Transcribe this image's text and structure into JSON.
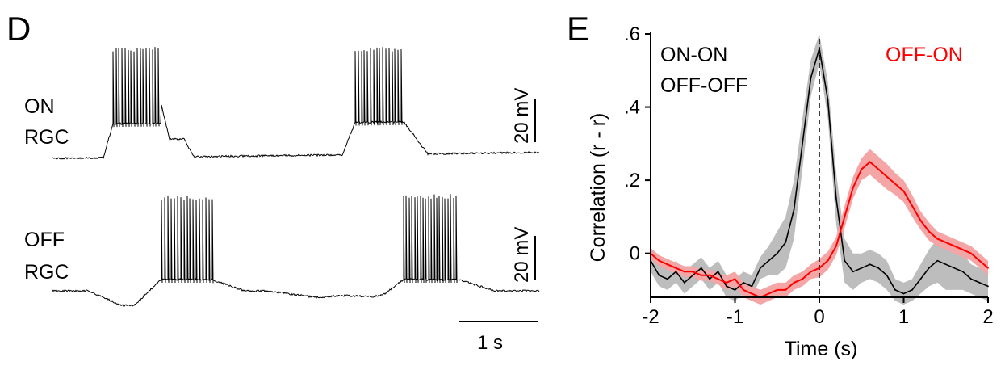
{
  "panels": {
    "d_letter": "D",
    "e_letter": "E"
  },
  "traces_panel": {
    "trace_labels": [
      {
        "line1": "ON",
        "line2": "RGC"
      },
      {
        "line1": "OFF",
        "line2": "RGC"
      }
    ],
    "voltage_scale_label": "20 mV",
    "time_scale_label": "1 s"
  },
  "chart_data": {
    "type": "line",
    "xlabel": "Time (s)",
    "ylabel": "Correlation (r - r)",
    "xlim": [
      -2,
      2
    ],
    "ylim": [
      -0.12,
      0.6
    ],
    "x_ticks": [
      {
        "value": -2,
        "label": "-2"
      },
      {
        "value": -1,
        "label": "-1"
      },
      {
        "value": 0,
        "label": "0"
      },
      {
        "value": 1,
        "label": "1"
      },
      {
        "value": 2,
        "label": "2"
      }
    ],
    "y_ticks": [
      {
        "value": 0,
        "label": "0"
      },
      {
        "value": 0.2,
        "label": ".2"
      },
      {
        "value": 0.4,
        "label": ".4"
      },
      {
        "value": 0.6,
        "label": ".6"
      }
    ],
    "legend": [
      "ON-ON",
      "OFF-OFF",
      "OFF-ON"
    ],
    "zero_line": true,
    "colors": {
      "same_type": "#000000",
      "same_type_band": "#bdbdbd",
      "opposite_type": "#ff0000",
      "opposite_type_band": "#f4a6a6"
    },
    "series": [
      {
        "name": "ON-ON",
        "color": "#000000",
        "x": [
          -2.0,
          -1.9,
          -1.8,
          -1.7,
          -1.6,
          -1.5,
          -1.4,
          -1.3,
          -1.2,
          -1.1,
          -1.0,
          -0.9,
          -0.8,
          -0.7,
          -0.6,
          -0.5,
          -0.4,
          -0.3,
          -0.2,
          -0.1,
          0.0,
          0.1,
          0.2,
          0.3,
          0.4,
          0.5,
          0.6,
          0.7,
          0.8,
          0.9,
          1.0,
          1.1,
          1.2,
          1.3,
          1.4,
          1.5,
          1.6,
          1.7,
          1.8,
          1.9,
          2.0
        ],
        "values": [
          -0.02,
          -0.06,
          -0.07,
          -0.05,
          -0.08,
          -0.06,
          -0.04,
          -0.07,
          -0.05,
          -0.09,
          -0.1,
          -0.08,
          -0.09,
          -0.04,
          -0.02,
          0.0,
          0.03,
          0.12,
          0.3,
          0.48,
          0.56,
          0.42,
          0.15,
          -0.02,
          -0.05,
          -0.04,
          -0.03,
          -0.04,
          -0.06,
          -0.1,
          -0.11,
          -0.1,
          -0.07,
          -0.04,
          -0.02,
          -0.03,
          -0.04,
          -0.05,
          -0.07,
          -0.08,
          -0.09
        ],
        "err": [
          0.03,
          0.03,
          0.03,
          0.03,
          0.03,
          0.03,
          0.03,
          0.03,
          0.03,
          0.03,
          0.03,
          0.03,
          0.03,
          0.03,
          0.04,
          0.06,
          0.07,
          0.08,
          0.07,
          0.05,
          0.04,
          0.05,
          0.07,
          0.06,
          0.05,
          0.04,
          0.04,
          0.04,
          0.04,
          0.03,
          0.03,
          0.03,
          0.04,
          0.05,
          0.06,
          0.07,
          0.06,
          0.05,
          0.04,
          0.04,
          0.04
        ]
      },
      {
        "name": "OFF-ON",
        "color": "#ff0000",
        "x": [
          -2.0,
          -1.9,
          -1.8,
          -1.7,
          -1.6,
          -1.5,
          -1.4,
          -1.3,
          -1.2,
          -1.1,
          -1.0,
          -0.9,
          -0.8,
          -0.7,
          -0.6,
          -0.5,
          -0.4,
          -0.3,
          -0.2,
          -0.1,
          0.0,
          0.1,
          0.2,
          0.3,
          0.4,
          0.5,
          0.6,
          0.7,
          0.8,
          0.9,
          1.0,
          1.1,
          1.2,
          1.3,
          1.4,
          1.5,
          1.6,
          1.7,
          1.8,
          1.9,
          2.0
        ],
        "values": [
          0.0,
          -0.02,
          -0.03,
          -0.04,
          -0.05,
          -0.05,
          -0.06,
          -0.06,
          -0.07,
          -0.08,
          -0.07,
          -0.1,
          -0.11,
          -0.12,
          -0.11,
          -0.1,
          -0.1,
          -0.08,
          -0.07,
          -0.05,
          -0.04,
          -0.02,
          0.02,
          0.1,
          0.18,
          0.23,
          0.25,
          0.23,
          0.21,
          0.19,
          0.17,
          0.13,
          0.09,
          0.06,
          0.04,
          0.03,
          0.02,
          0.01,
          0.0,
          -0.02,
          -0.04
        ],
        "err": [
          0.015,
          0.015,
          0.015,
          0.015,
          0.015,
          0.015,
          0.015,
          0.015,
          0.015,
          0.02,
          0.02,
          0.02,
          0.02,
          0.02,
          0.02,
          0.02,
          0.02,
          0.02,
          0.02,
          0.02,
          0.025,
          0.025,
          0.025,
          0.03,
          0.03,
          0.03,
          0.035,
          0.035,
          0.035,
          0.03,
          0.03,
          0.03,
          0.025,
          0.025,
          0.02,
          0.02,
          0.02,
          0.02,
          0.02,
          0.02,
          0.02
        ]
      }
    ]
  }
}
